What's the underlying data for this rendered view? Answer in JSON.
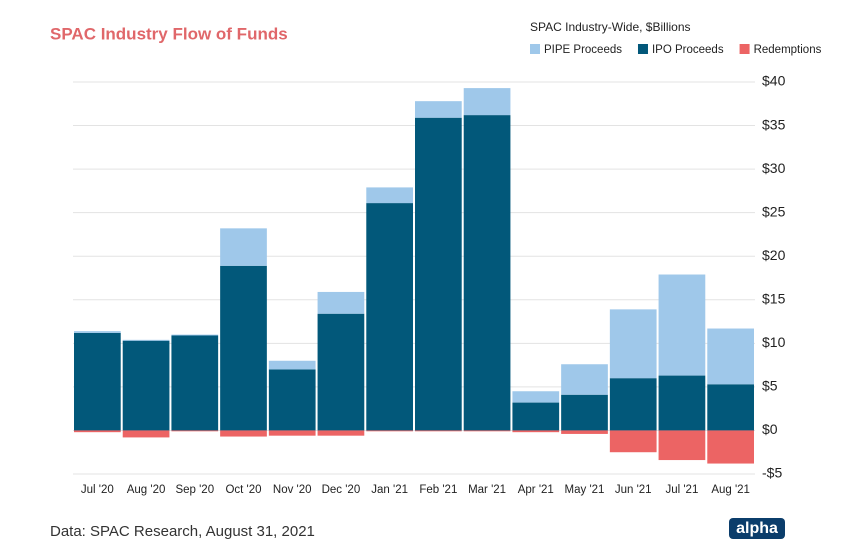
{
  "chart_data": {
    "type": "stacked_bar",
    "title": "SPAC Industry Flow of Funds",
    "legend_title": "SPAC Industry-Wide, $Billions",
    "categories": [
      "Jul '20",
      "Aug '20",
      "Sep '20",
      "Oct '20",
      "Nov '20",
      "Dec '20",
      "Jan '21",
      "Feb '21",
      "Mar '21",
      "Apr '21",
      "May '21",
      "Jun '21",
      "Jul '21",
      "Aug '21"
    ],
    "series": [
      {
        "name": "PIPE Proceeds",
        "color": "#9fc8ea",
        "values": [
          0.2,
          0.1,
          0.1,
          4.3,
          1.0,
          2.5,
          1.8,
          1.9,
          3.1,
          1.3,
          3.5,
          7.9,
          11.6,
          6.4
        ]
      },
      {
        "name": "IPO Proceeds",
        "color": "#02587a",
        "values": [
          11.2,
          10.3,
          10.9,
          18.9,
          7.0,
          13.4,
          26.1,
          35.9,
          36.2,
          3.2,
          4.1,
          6.0,
          6.3,
          5.3
        ]
      },
      {
        "name": "Redemptions",
        "color": "#ec6464",
        "values": [
          -0.2,
          -0.8,
          -0.1,
          -0.7,
          -0.6,
          -0.6,
          -0.1,
          -0.1,
          -0.1,
          -0.2,
          -0.4,
          -2.5,
          -3.4,
          -3.8
        ]
      }
    ],
    "ylim": [
      -5,
      40
    ],
    "yticks": [
      {
        "value": -5,
        "label": "-$5"
      },
      {
        "value": 0,
        "label": "$0"
      },
      {
        "value": 5,
        "label": "$5"
      },
      {
        "value": 10,
        "label": "$10"
      },
      {
        "value": 15,
        "label": "$15"
      },
      {
        "value": 20,
        "label": "$20"
      },
      {
        "value": 25,
        "label": "$25"
      },
      {
        "value": 30,
        "label": "$30"
      },
      {
        "value": 35,
        "label": "$35"
      },
      {
        "value": 40,
        "label": "$40"
      }
    ],
    "grid": true,
    "legend_position": "top right",
    "source": "Data: SPAC Research, August 31, 2021",
    "logo": "alpha"
  }
}
